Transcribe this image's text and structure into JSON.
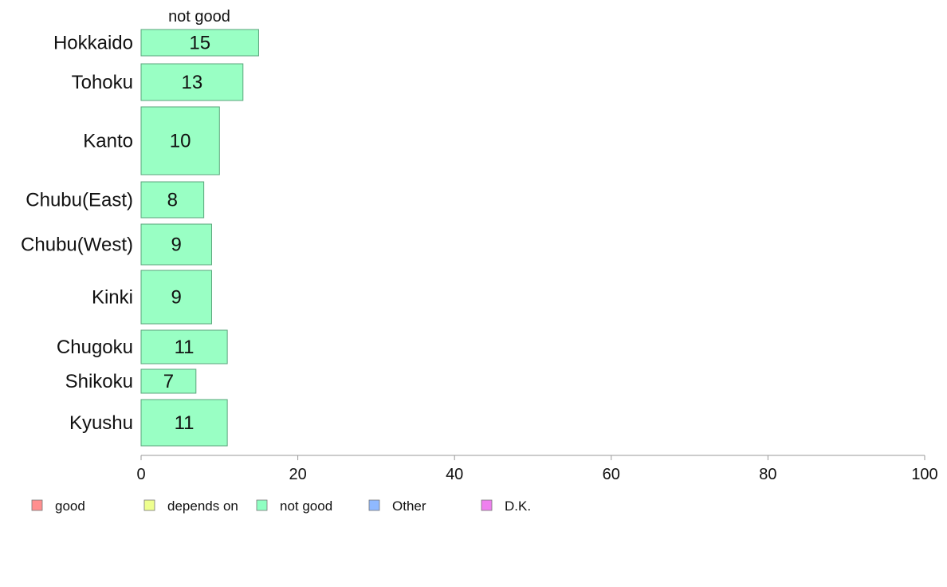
{
  "chart_data": {
    "type": "bar",
    "orientation": "horizontal",
    "series_heading": "not good",
    "categories": [
      "Hokkaido",
      "Tohoku",
      "Kanto",
      "Chubu(East)",
      "Chubu(West)",
      "Kinki",
      "Chugoku",
      "Shikoku",
      "Kyushu"
    ],
    "series": [
      {
        "name": "not good",
        "values": [
          15,
          13,
          10,
          8,
          9,
          9,
          11,
          7,
          11
        ],
        "color": "#99ffc4"
      }
    ],
    "xlim": [
      0,
      100
    ],
    "xticks": [
      0,
      20,
      40,
      60,
      80,
      100
    ],
    "grid": false,
    "legend": {
      "position": "bottom-left",
      "items": [
        {
          "label": "good",
          "color": "#ff8f8f"
        },
        {
          "label": "depends on",
          "color": "#eeff8f"
        },
        {
          "label": "not good",
          "color": "#8fffc2"
        },
        {
          "label": "Other",
          "color": "#8fb9ff"
        },
        {
          "label": "D.K.",
          "color": "#ee80ee"
        }
      ]
    }
  }
}
